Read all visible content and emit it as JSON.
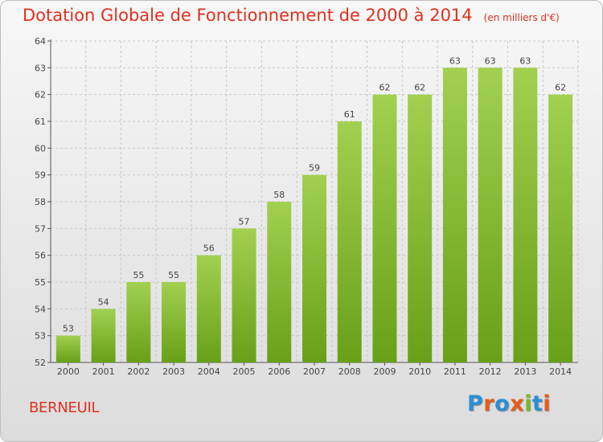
{
  "page": {
    "commune": "BERNEUIL",
    "logo": {
      "text": "Proxiti",
      "colors": [
        "#2b8fd6",
        "#e95b1b",
        "#2b8fd6",
        "#e95b1b",
        "#7cb928",
        "#2b8fd6",
        "#e95b1b"
      ]
    }
  },
  "chart_data": {
    "type": "bar",
    "title": "Dotation Globale de Fonctionnement de 2000 à 2014",
    "subtitle": "(en milliers d'€)",
    "categories": [
      "2000",
      "2001",
      "2002",
      "2003",
      "2004",
      "2005",
      "2006",
      "2007",
      "2008",
      "2009",
      "2010",
      "2011",
      "2012",
      "2013",
      "2014"
    ],
    "values": [
      53,
      54,
      55,
      55,
      56,
      57,
      58,
      59,
      61,
      62,
      62,
      63,
      63,
      63,
      62
    ],
    "ylim": [
      52,
      64
    ],
    "yticks": [
      52,
      53,
      54,
      55,
      56,
      57,
      58,
      59,
      60,
      61,
      62,
      63,
      64
    ],
    "grid": true,
    "colors": {
      "bar_light": "#a2d050",
      "bar_dark": "#68a018",
      "title": "#e0301e",
      "grid": "#c8c8c8"
    }
  }
}
